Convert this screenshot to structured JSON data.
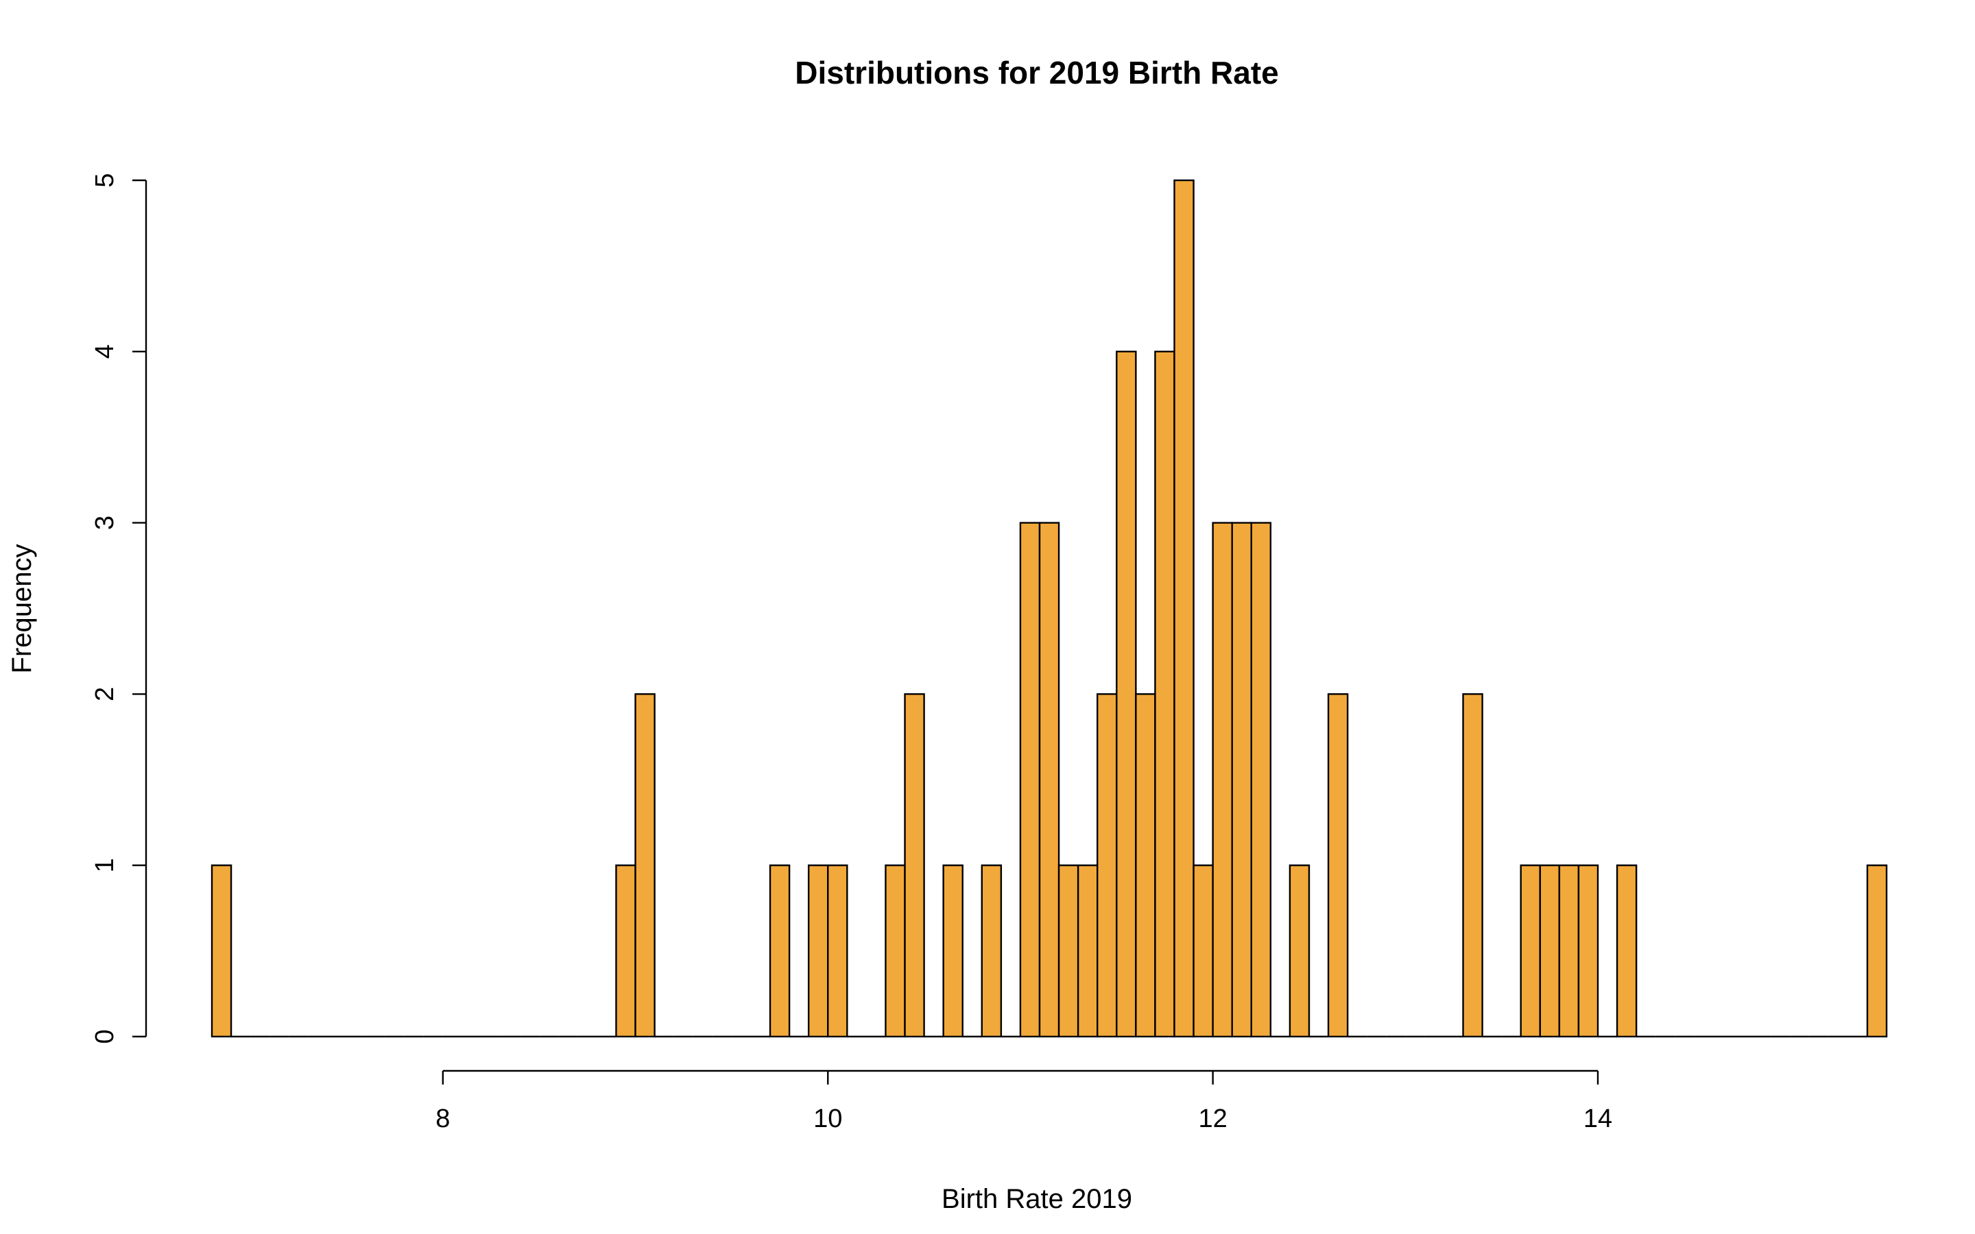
{
  "chart_data": {
    "type": "bar",
    "subtype": "histogram",
    "title": "Distributions for 2019 Birth Rate",
    "xlabel": "Birth Rate 2019",
    "ylabel": "Frequency",
    "bin_width": 0.1,
    "bins_start": 6.8,
    "values": [
      1,
      0,
      0,
      0,
      0,
      0,
      0,
      0,
      0,
      0,
      0,
      0,
      0,
      0,
      0,
      0,
      0,
      0,
      0,
      0,
      0,
      1,
      2,
      0,
      0,
      0,
      0,
      0,
      0,
      1,
      0,
      1,
      1,
      0,
      0,
      1,
      2,
      0,
      1,
      0,
      1,
      0,
      3,
      3,
      1,
      1,
      2,
      4,
      2,
      4,
      5,
      1,
      3,
      3,
      3,
      0,
      1,
      0,
      2,
      0,
      0,
      0,
      0,
      0,
      0,
      2,
      0,
      0,
      1,
      1,
      1,
      1,
      0,
      1,
      0,
      0,
      0,
      0,
      0,
      0,
      0,
      0,
      0,
      0,
      0,
      0,
      1
    ],
    "xlim": [
      6.8,
      15.4
    ],
    "ylim": [
      0,
      5
    ],
    "x_ticks": [
      8,
      10,
      12,
      14
    ],
    "y_ticks": [
      0,
      1,
      2,
      3,
      4,
      5
    ],
    "x_tick_labels": [
      "8",
      "10",
      "12",
      "14"
    ],
    "y_tick_labels": [
      "0",
      "1",
      "2",
      "3",
      "4",
      "5"
    ],
    "grid": false,
    "legend": "none",
    "bar_color": "#F2A93B",
    "edge_color": "#000000"
  }
}
